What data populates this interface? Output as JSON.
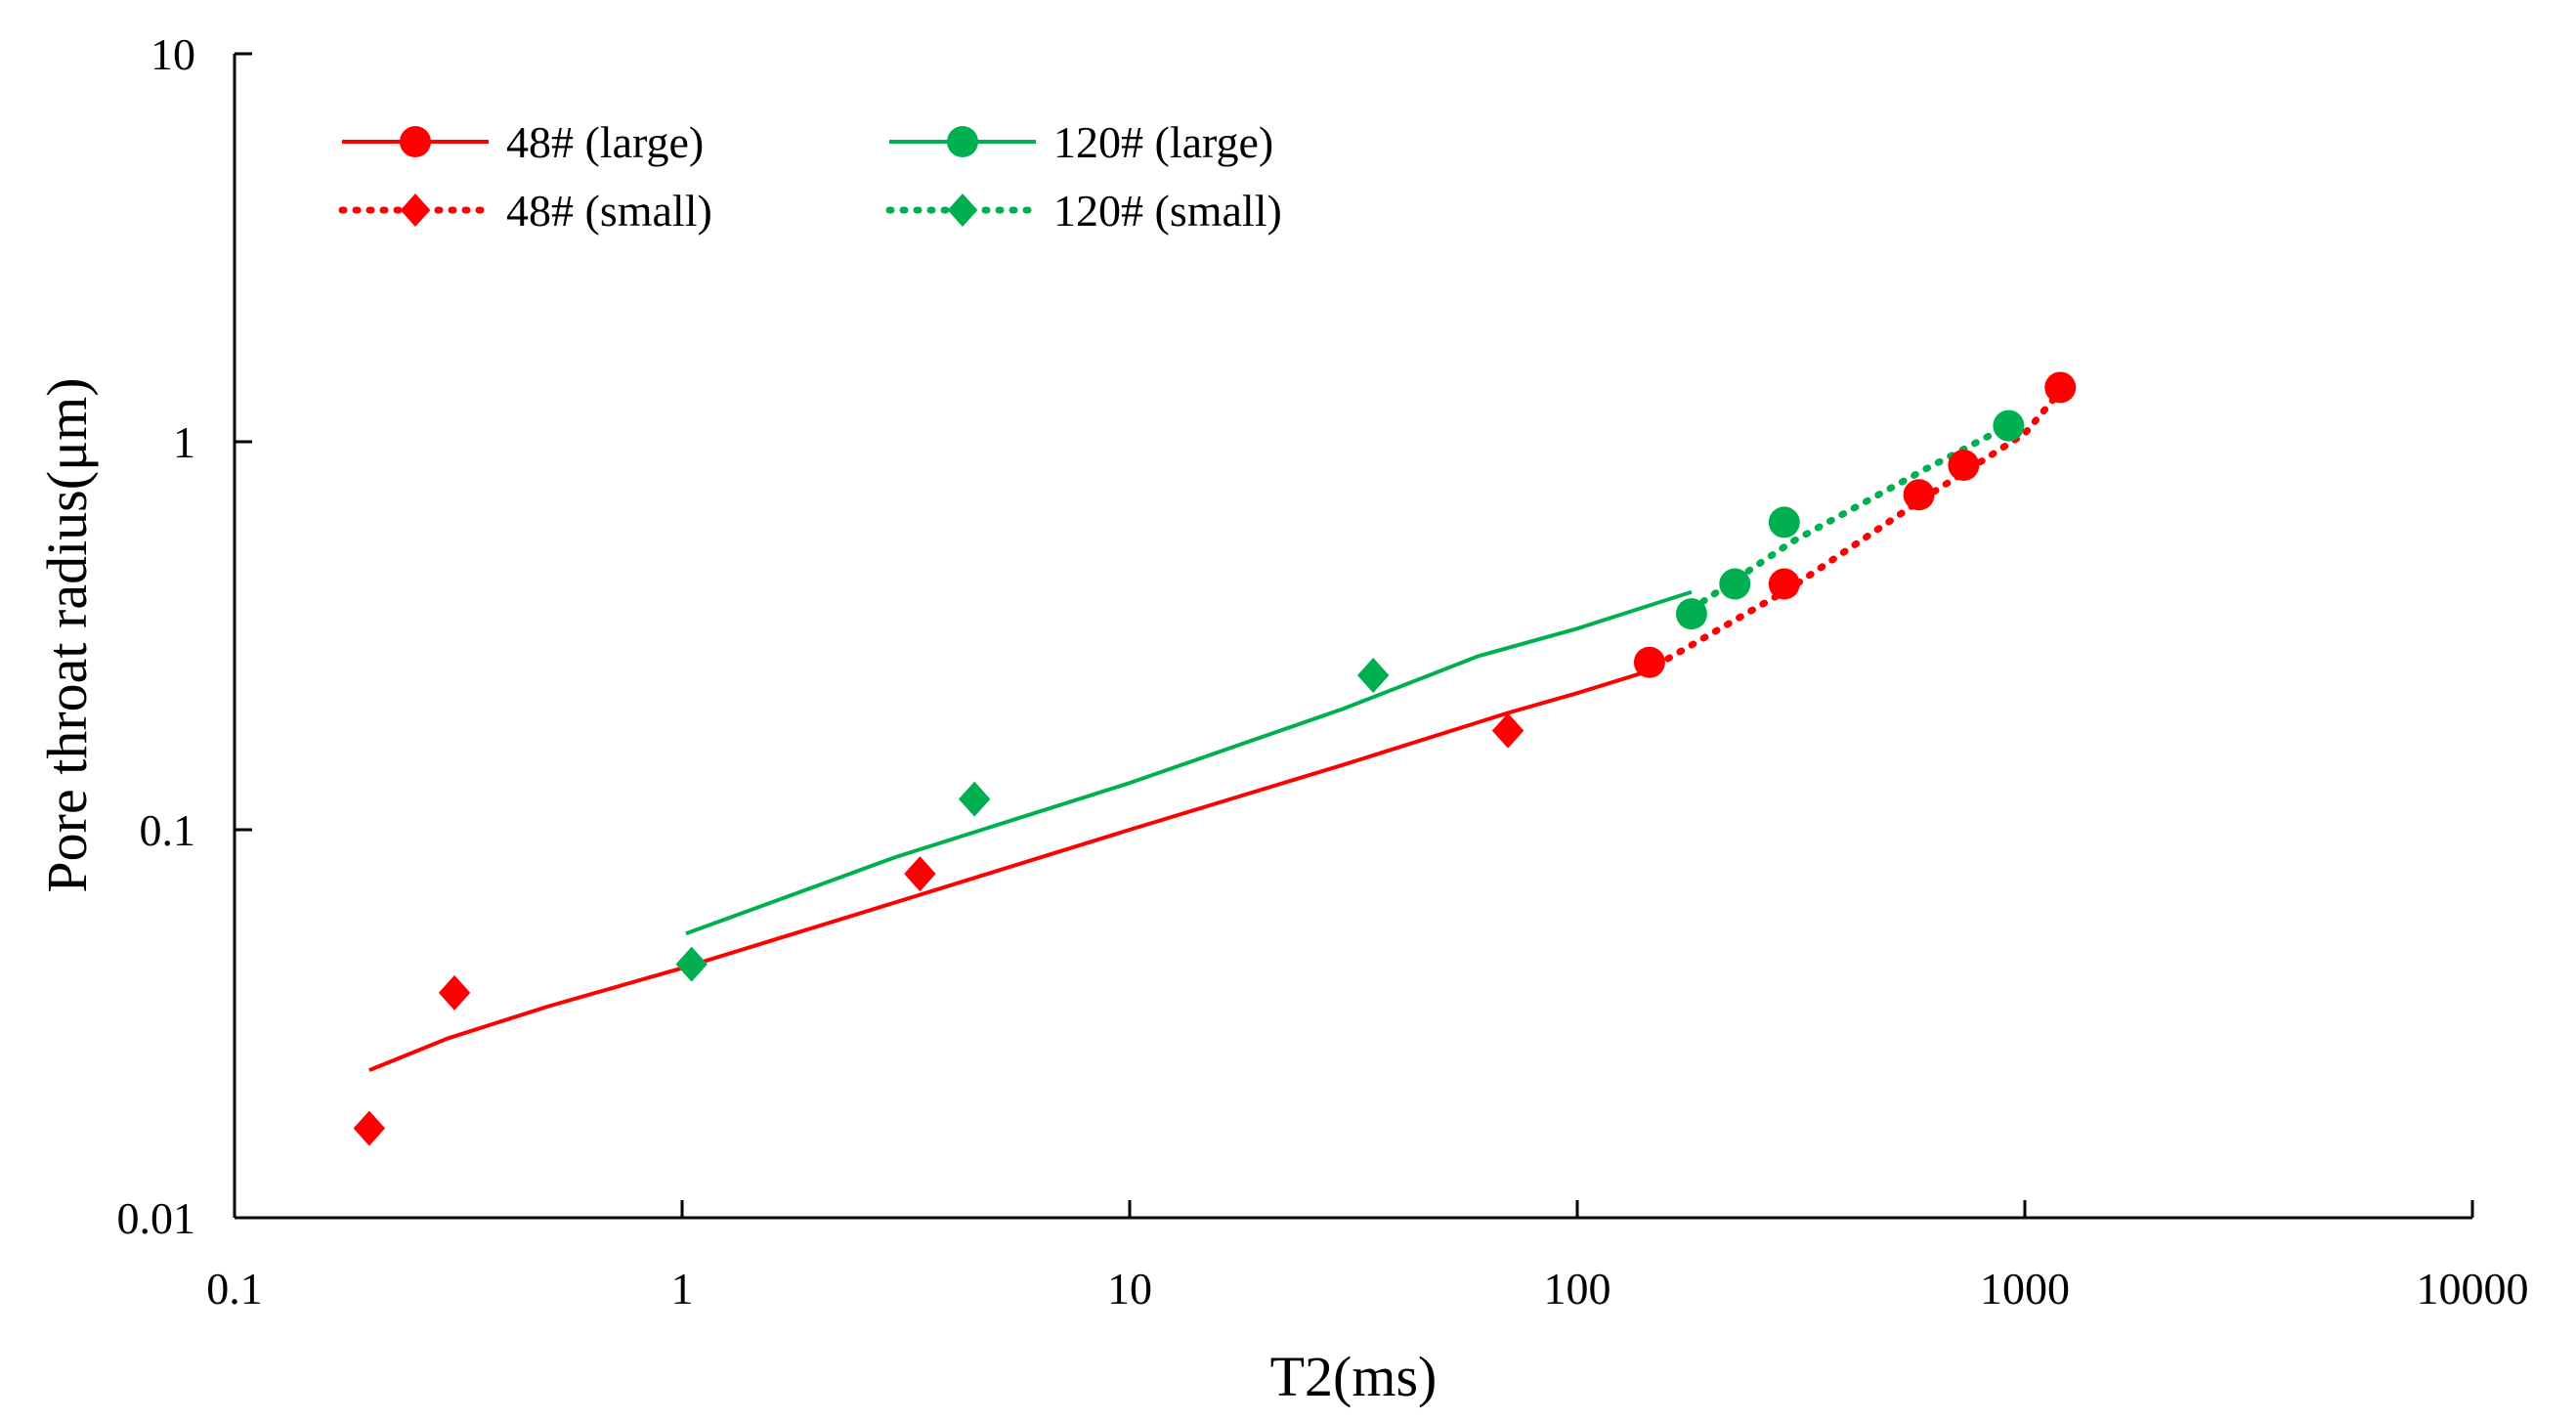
{
  "chart_data": {
    "type": "scatter",
    "title": "",
    "xlabel": "T2(ms)",
    "ylabel": "Pore throat radius(μm)",
    "x_scale": "log",
    "y_scale": "log",
    "xlim": [
      0.1,
      10000
    ],
    "ylim": [
      0.01,
      10
    ],
    "x_ticks": [
      0.1,
      1,
      10,
      100,
      1000,
      10000
    ],
    "x_tick_labels": [
      "0.1",
      "1",
      "10",
      "100",
      "1000",
      "10000"
    ],
    "y_ticks": [
      0.01,
      0.1,
      1,
      10
    ],
    "y_tick_labels": [
      "0.01",
      "0.1",
      "1",
      "10"
    ],
    "legend_position": "top-left",
    "series": [
      {
        "name": "48# (large)",
        "color": "#ff0000",
        "line_style": "solid",
        "marker": "circle",
        "line": [
          [
            0.2,
            0.024
          ],
          [
            0.3,
            0.029
          ],
          [
            0.5,
            0.035
          ],
          [
            1,
            0.044
          ],
          [
            3,
            0.065
          ],
          [
            10,
            0.1
          ],
          [
            30,
            0.147
          ],
          [
            70,
            0.2
          ],
          [
            100,
            0.225
          ],
          [
            150,
            0.26
          ]
        ],
        "points": [
          [
            1200,
            1.38
          ],
          [
            730,
            0.87
          ],
          [
            580,
            0.73
          ],
          [
            290,
            0.43
          ],
          [
            145,
            0.27
          ]
        ]
      },
      {
        "name": "48# (small)",
        "color": "#ff0000",
        "line_style": "dotted",
        "marker": "diamond",
        "line": [
          [
            150,
            0.265
          ],
          [
            300,
            0.42
          ],
          [
            600,
            0.72
          ],
          [
            1000,
            1.05
          ],
          [
            1200,
            1.35
          ]
        ],
        "points": [
          [
            70,
            0.18
          ],
          [
            3.4,
            0.077
          ],
          [
            0.31,
            0.038
          ],
          [
            0.2,
            0.017
          ]
        ]
      },
      {
        "name": "120# (large)",
        "color": "#00b050",
        "line_style": "solid",
        "marker": "circle",
        "line": [
          [
            1.02,
            0.054
          ],
          [
            3,
            0.085
          ],
          [
            10,
            0.132
          ],
          [
            30,
            0.205
          ],
          [
            60,
            0.28
          ],
          [
            100,
            0.33
          ],
          [
            180,
            0.41
          ]
        ],
        "points": [
          [
            920,
            1.1
          ],
          [
            290,
            0.62
          ],
          [
            225,
            0.43
          ],
          [
            180,
            0.36
          ]
        ]
      },
      {
        "name": "120# (small)",
        "color": "#00b050",
        "line_style": "dotted",
        "marker": "diamond",
        "line": [
          [
            180,
            0.37
          ],
          [
            300,
            0.55
          ],
          [
            600,
            0.85
          ],
          [
            920,
            1.1
          ]
        ],
        "points": [
          [
            35,
            0.25
          ],
          [
            4.5,
            0.12
          ],
          [
            1.05,
            0.045
          ]
        ]
      }
    ]
  }
}
